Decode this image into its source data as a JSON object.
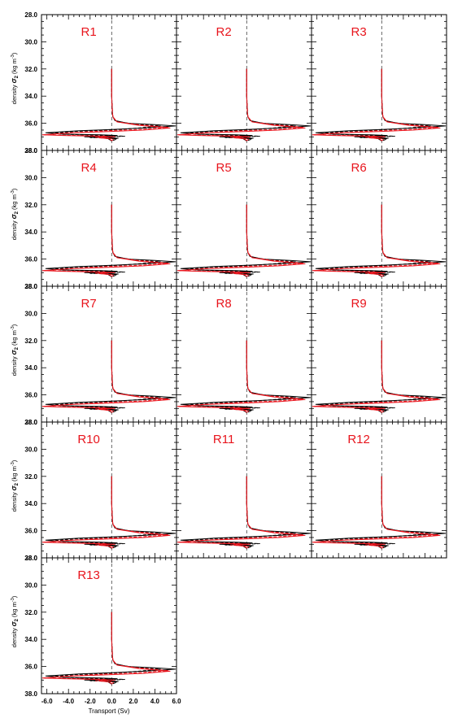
{
  "figure": {
    "ylabel": "density",
    "ylabel_symbol": "σ",
    "ylabel_sub": "2",
    "ylabel_unit": "(kg m",
    "ylabel_unit_sup": "-3",
    "ylabel_unit_close": ")",
    "xlabel": "Transport (Sv)",
    "colors": {
      "axes": "#000000",
      "obs_line": "#000000",
      "model_line": "#e8141c",
      "panel_label": "#e8141c"
    }
  },
  "chart_data": {
    "type": "line",
    "layout": "5x3 small-multiple grid, 13 panels",
    "xlim": [
      -6.5,
      6
    ],
    "ylim": [
      38,
      28
    ],
    "xticks": [
      "-6.0",
      "-4.0",
      "-2.0",
      "0.0",
      "2.0",
      "4.0",
      "6.0"
    ],
    "yticks": [
      "28.0",
      "30.0",
      "32.0",
      "34.0",
      "36.0",
      "38.0"
    ],
    "x_label": "Transport (Sv)",
    "y_label": "density σ2 (kg m-3)",
    "zero_line": {
      "x": 0,
      "style": "dashed",
      "color": "#555555"
    },
    "panels": [
      "R1",
      "R2",
      "R3",
      "R4",
      "R5",
      "R6",
      "R7",
      "R8",
      "R9",
      "R10",
      "R11",
      "R12",
      "R13"
    ],
    "series": [
      {
        "color": "#000000",
        "style": "solid",
        "x": [
          0,
          0,
          0.05,
          0.1,
          0.3,
          1.5,
          4.0,
          5.9,
          3.0,
          0.2,
          -3.0,
          -6.1,
          -4.5,
          -1.0,
          0.5,
          -1.0,
          -2.5,
          -0.5,
          0.6,
          -0.3,
          0
        ],
        "y": [
          32.0,
          34.0,
          35.0,
          35.5,
          35.8,
          36.0,
          36.1,
          36.2,
          36.35,
          36.45,
          36.55,
          36.7,
          36.8,
          36.85,
          36.9,
          36.95,
          37.0,
          37.05,
          37.1,
          37.15,
          37.3
        ]
      },
      {
        "color": "#000000",
        "style": "dashed",
        "x": [
          0,
          0,
          0.1,
          0.4,
          2.0,
          4.5,
          2.5,
          0.0,
          -3.5,
          -5.5,
          -3.0,
          1.2,
          -0.5,
          -2.0,
          -0.2,
          0.5,
          0
        ],
        "y": [
          32.0,
          34.0,
          35.5,
          35.85,
          36.05,
          36.2,
          36.35,
          36.5,
          36.6,
          36.75,
          36.85,
          36.95,
          37.0,
          37.05,
          37.1,
          37.15,
          37.3
        ]
      },
      {
        "color": "#e8141c",
        "style": "solid",
        "x": [
          0,
          0,
          0.05,
          0.15,
          0.5,
          2.5,
          5.4,
          3.0,
          0.0,
          -3.5,
          -6.4,
          -4.5,
          -1.5,
          0.3,
          -1.2,
          -0.2,
          0
        ],
        "y": [
          32.0,
          34.0,
          35.2,
          35.6,
          35.9,
          36.15,
          36.35,
          36.5,
          36.6,
          36.7,
          36.85,
          36.9,
          36.95,
          37.0,
          37.05,
          37.15,
          37.3
        ]
      },
      {
        "color": "#e8141c",
        "style": "dashed",
        "x": [
          0,
          0,
          0.1,
          0.5,
          2.5,
          5.2,
          2.8,
          -0.5,
          -4.0,
          -6.3,
          -3.0,
          -0.5,
          -1.5,
          0.2,
          0
        ],
        "y": [
          32.0,
          34.0,
          35.5,
          35.9,
          36.1,
          36.3,
          36.45,
          36.55,
          36.7,
          36.85,
          36.9,
          36.95,
          37.05,
          37.15,
          37.3
        ]
      }
    ]
  }
}
